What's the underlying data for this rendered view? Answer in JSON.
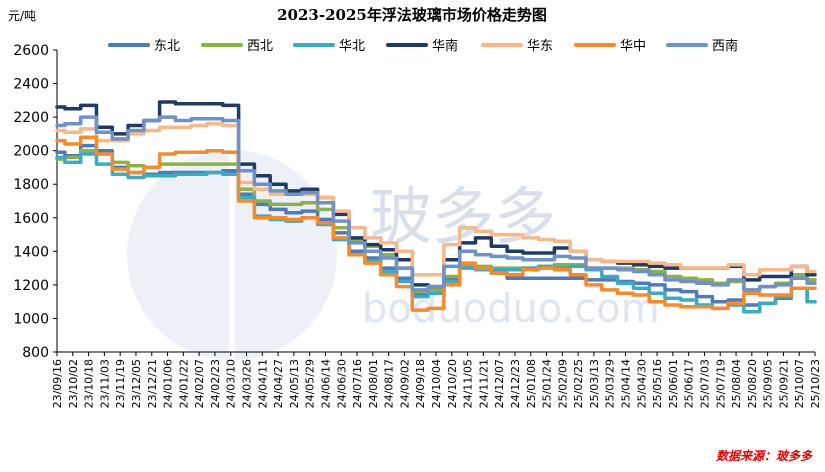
{
  "chart_data": {
    "type": "line",
    "title": "2023-2025年浮法玻璃市场价格走势图",
    "ylabel": "元/吨",
    "xlabel": "",
    "ylim": [
      800,
      2600
    ],
    "yticks": [
      800,
      1000,
      1200,
      1400,
      1600,
      1800,
      2000,
      2200,
      2400,
      2600
    ],
    "categories": [
      "23/09/16",
      "23/10/02",
      "23/10/18",
      "23/11/03",
      "23/11/19",
      "23/12/05",
      "23/12/21",
      "24/01/06",
      "24/01/22",
      "24/02/07",
      "24/02/23",
      "24/03/10",
      "24/03/26",
      "24/04/11",
      "24/04/27",
      "24/05/13",
      "24/05/29",
      "24/06/14",
      "24/06/30",
      "24/07/16",
      "24/08/01",
      "24/08/17",
      "24/09/02",
      "24/09/18",
      "24/10/04",
      "24/10/20",
      "24/11/05",
      "24/11/21",
      "24/12/07",
      "24/12/23",
      "25/01/08",
      "25/01/24",
      "25/02/09",
      "25/02/25",
      "25/03/13",
      "25/03/29",
      "25/04/14",
      "25/04/30",
      "25/05/16",
      "25/06/01",
      "25/06/17",
      "25/07/03",
      "25/07/19",
      "25/08/04",
      "25/08/20",
      "25/09/05",
      "25/09/21",
      "25/10/07",
      "25/10/23"
    ],
    "legend_position": "top",
    "grid": false,
    "series": [
      {
        "name": "东北",
        "color": "#4f7ab5",
        "values": [
          1990,
          1970,
          2030,
          2000,
          1900,
          1870,
          1860,
          1870,
          1870,
          1870,
          1870,
          1880,
          1740,
          1680,
          1650,
          1630,
          1640,
          1590,
          1510,
          1400,
          1360,
          1300,
          1240,
          1150,
          1160,
          1240,
          1310,
          1290,
          1270,
          1240,
          1240,
          1240,
          1240,
          1240,
          1230,
          1230,
          1220,
          1210,
          1200,
          1170,
          1160,
          1130,
          1100,
          1110,
          1080,
          1090,
          1120,
          1180,
          1100
        ]
      },
      {
        "name": "西北",
        "color": "#8db04a",
        "values": [
          1950,
          1960,
          2000,
          1980,
          1930,
          1910,
          1900,
          1920,
          1920,
          1920,
          1920,
          1920,
          1770,
          1700,
          1680,
          1680,
          1690,
          1650,
          1540,
          1460,
          1430,
          1380,
          1300,
          1160,
          1170,
          1250,
          1320,
          1310,
          1300,
          1300,
          1300,
          1310,
          1320,
          1320,
          1300,
          1300,
          1300,
          1290,
          1280,
          1250,
          1240,
          1230,
          1210,
          1220,
          1170,
          1190,
          1210,
          1260,
          1230
        ]
      },
      {
        "name": "华北",
        "color": "#3fa9c2",
        "values": [
          1960,
          1930,
          1980,
          1920,
          1860,
          1840,
          1850,
          1850,
          1860,
          1860,
          1870,
          1860,
          1720,
          1610,
          1590,
          1580,
          1600,
          1560,
          1470,
          1380,
          1340,
          1280,
          1220,
          1130,
          1150,
          1220,
          1300,
          1290,
          1290,
          1290,
          1300,
          1310,
          1300,
          1310,
          1290,
          1250,
          1210,
          1180,
          1150,
          1120,
          1110,
          1080,
          1060,
          1080,
          1040,
          1090,
          1130,
          1180,
          1100
        ]
      },
      {
        "name": "华南",
        "color": "#1f3b63",
        "values": [
          2260,
          2250,
          2270,
          2140,
          2100,
          2150,
          2180,
          2290,
          2280,
          2280,
          2280,
          2270,
          1920,
          1850,
          1800,
          1760,
          1770,
          1720,
          1620,
          1480,
          1440,
          1410,
          1350,
          1200,
          1190,
          1350,
          1450,
          1480,
          1430,
          1400,
          1390,
          1390,
          1420,
          1400,
          1350,
          1340,
          1330,
          1320,
          1310,
          1300,
          1300,
          1300,
          1300,
          1310,
          1230,
          1250,
          1250,
          1310,
          1260
        ]
      },
      {
        "name": "华东",
        "color": "#f7b98c",
        "values": [
          2120,
          2110,
          2130,
          2060,
          2060,
          2100,
          2120,
          2140,
          2140,
          2150,
          2160,
          2150,
          1810,
          1770,
          1740,
          1740,
          1740,
          1720,
          1640,
          1540,
          1480,
          1450,
          1400,
          1260,
          1260,
          1440,
          1540,
          1520,
          1500,
          1500,
          1480,
          1470,
          1460,
          1400,
          1350,
          1340,
          1340,
          1340,
          1330,
          1320,
          1300,
          1300,
          1300,
          1320,
          1260,
          1290,
          1290,
          1310,
          1280
        ]
      },
      {
        "name": "华中",
        "color": "#f28c2d",
        "values": [
          2060,
          2040,
          2080,
          1980,
          1890,
          1870,
          1900,
          1980,
          1990,
          1990,
          2000,
          1990,
          1700,
          1600,
          1600,
          1590,
          1600,
          1570,
          1480,
          1380,
          1330,
          1260,
          1190,
          1050,
          1060,
          1200,
          1330,
          1300,
          1270,
          1260,
          1290,
          1300,
          1290,
          1260,
          1200,
          1170,
          1150,
          1140,
          1100,
          1080,
          1070,
          1070,
          1060,
          1090,
          1150,
          1140,
          1140,
          1180,
          1180
        ]
      },
      {
        "name": "西南",
        "color": "#6f91c6",
        "values": [
          2150,
          2160,
          2200,
          2110,
          2070,
          2120,
          2180,
          2200,
          2180,
          2190,
          2190,
          2180,
          1880,
          1800,
          1760,
          1740,
          1750,
          1690,
          1580,
          1450,
          1400,
          1360,
          1300,
          1170,
          1190,
          1310,
          1400,
          1380,
          1370,
          1360,
          1350,
          1350,
          1370,
          1360,
          1300,
          1300,
          1290,
          1280,
          1260,
          1230,
          1220,
          1210,
          1200,
          1230,
          1170,
          1190,
          1200,
          1240,
          1210
        ]
      }
    ]
  },
  "watermark": {
    "glyph": "B",
    "text": "玻多多",
    "url": "boduoduo.com"
  },
  "source_note": "数据来源：玻多多"
}
